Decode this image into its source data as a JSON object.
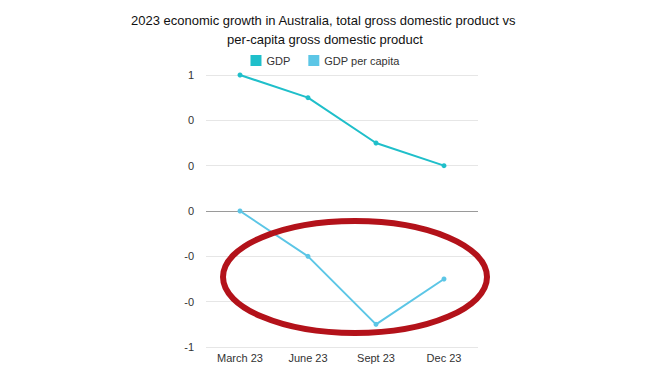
{
  "chart_data": {
    "type": "line",
    "title": "2023 economic growth in Australia, total gross domestic product vs per-capita gross domestic product",
    "categories": [
      "March 23",
      "June 23",
      "Sept 23",
      "Dec 23"
    ],
    "series": [
      {
        "name": "GDP",
        "color": "#1fbfca",
        "values": [
          0.6,
          0.5,
          0.3,
          0.2
        ],
        "marker": "circle"
      },
      {
        "name": "GDP per capita",
        "color": "#5cc6e6",
        "values": [
          0,
          -0.2,
          -0.5,
          -0.3
        ],
        "marker": "circle"
      }
    ],
    "ylim": [
      -0.6,
      0.6
    ],
    "yticks": [
      {
        "value": -0.6,
        "label": "-1"
      },
      {
        "value": -0.4,
        "label": "-0"
      },
      {
        "value": -0.2,
        "label": "-0"
      },
      0,
      {
        "value": 0.2,
        "label": "0"
      },
      {
        "value": 0.4,
        "label": "0"
      },
      {
        "value": 0.6,
        "label": "1"
      }
    ],
    "grid": true,
    "legend": "top"
  }
}
